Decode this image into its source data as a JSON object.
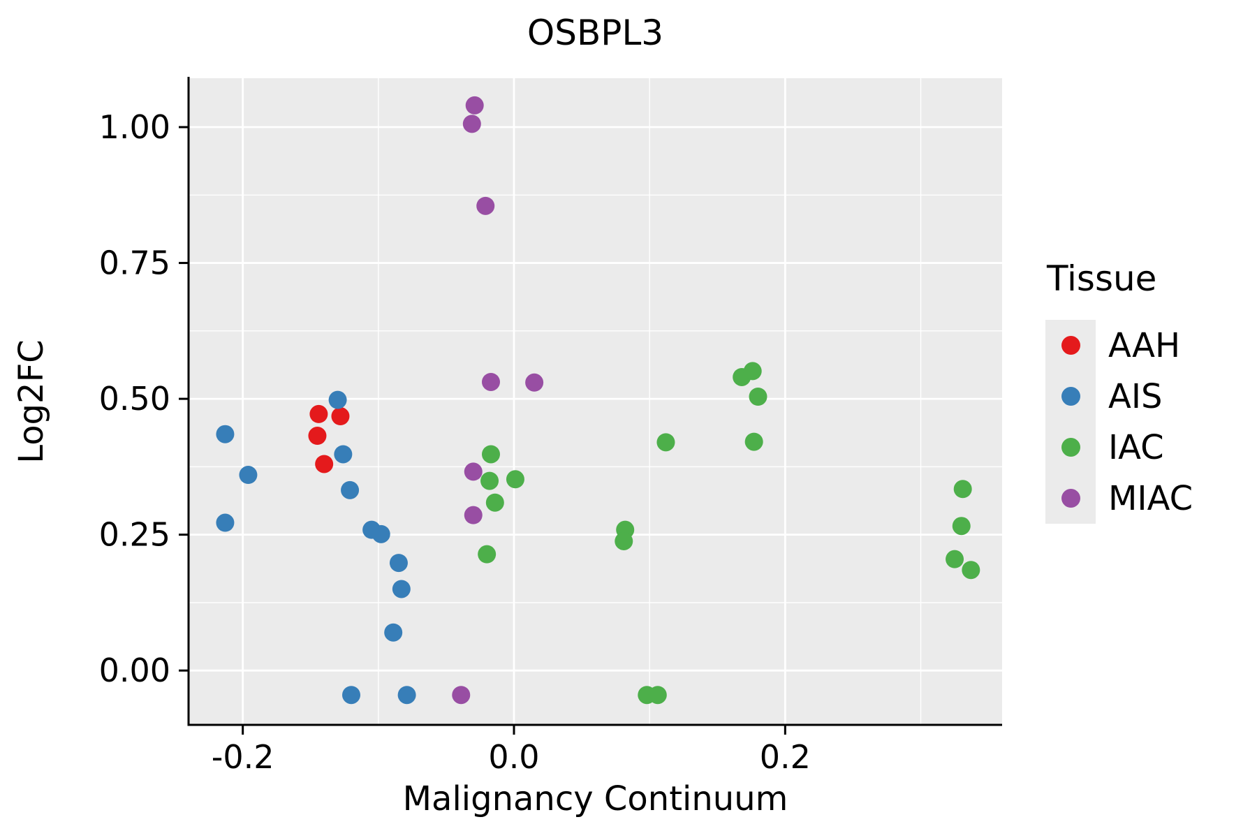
{
  "chart_data": {
    "type": "scatter",
    "title": "OSBPL3",
    "xlabel": "Malignancy Continuum",
    "ylabel": "Log2FC",
    "xlim": [
      -0.24,
      0.36
    ],
    "ylim": [
      -0.1,
      1.09
    ],
    "x_ticks": [
      -0.2,
      0.0,
      0.2
    ],
    "x_tick_labels": [
      "-0.2",
      "0.0",
      "0.2"
    ],
    "x_minor_ticks": [
      -0.1,
      0.1,
      0.3
    ],
    "y_ticks": [
      0.0,
      0.25,
      0.5,
      0.75,
      1.0
    ],
    "y_tick_labels": [
      "0.00",
      "0.25",
      "0.50",
      "0.75",
      "1.00"
    ],
    "y_minor_ticks": [
      0.125,
      0.375,
      0.625,
      0.875
    ],
    "grid": "major and minor white gridlines on gray panel",
    "panel_color": "#EBEBEB",
    "gridline_color": "#FFFFFF",
    "axis_color": "#000000",
    "legend": {
      "title": "Tissue",
      "position": "right"
    },
    "series": [
      {
        "name": "AAH",
        "color": "#E41A1C",
        "points": [
          [
            -0.144,
            0.472
          ],
          [
            -0.128,
            0.468
          ],
          [
            -0.145,
            0.432
          ],
          [
            -0.14,
            0.38
          ]
        ]
      },
      {
        "name": "AIS",
        "color": "#377EB8",
        "points": [
          [
            -0.213,
            0.435
          ],
          [
            -0.213,
            0.272
          ],
          [
            -0.196,
            0.36
          ],
          [
            -0.13,
            0.498
          ],
          [
            -0.126,
            0.398
          ],
          [
            -0.121,
            0.332
          ],
          [
            -0.105,
            0.259
          ],
          [
            -0.098,
            0.251
          ],
          [
            -0.085,
            0.198
          ],
          [
            -0.083,
            0.15
          ],
          [
            -0.089,
            0.07
          ],
          [
            -0.12,
            -0.045
          ],
          [
            -0.079,
            -0.045
          ]
        ]
      },
      {
        "name": "IAC",
        "color": "#4DAF4A",
        "points": [
          [
            -0.017,
            0.398
          ],
          [
            -0.018,
            0.349
          ],
          [
            -0.014,
            0.309
          ],
          [
            0.001,
            0.352
          ],
          [
            -0.02,
            0.214
          ],
          [
            0.082,
            0.259
          ],
          [
            0.081,
            0.238
          ],
          [
            0.112,
            0.42
          ],
          [
            0.168,
            0.54
          ],
          [
            0.176,
            0.551
          ],
          [
            0.18,
            0.504
          ],
          [
            0.177,
            0.421
          ],
          [
            0.331,
            0.334
          ],
          [
            0.33,
            0.266
          ],
          [
            0.325,
            0.205
          ],
          [
            0.337,
            0.185
          ],
          [
            0.098,
            -0.045
          ],
          [
            0.106,
            -0.045
          ]
        ]
      },
      {
        "name": "MIAC",
        "color": "#984EA3",
        "points": [
          [
            -0.029,
            1.04
          ],
          [
            -0.031,
            1.006
          ],
          [
            -0.021,
            0.855
          ],
          [
            -0.017,
            0.531
          ],
          [
            0.015,
            0.53
          ],
          [
            -0.03,
            0.366
          ],
          [
            -0.03,
            0.286
          ],
          [
            -0.039,
            -0.045
          ]
        ]
      }
    ]
  }
}
